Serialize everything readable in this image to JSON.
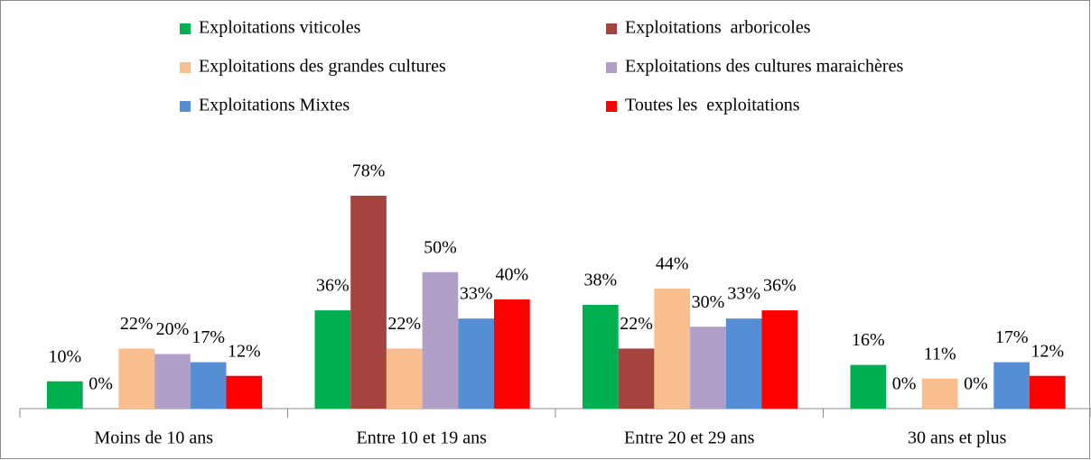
{
  "chart_data": {
    "type": "bar",
    "categories": [
      "Moins de 10 ans",
      "Entre 10 et 19 ans",
      "Entre 20 et 29 ans",
      "30 ans et plus"
    ],
    "series": [
      {
        "name": "Exploitations viticoles",
        "color": "#00b050",
        "values": [
          10,
          36,
          38,
          16
        ],
        "value_labels": [
          "10%",
          "36%",
          "38%",
          "16%"
        ]
      },
      {
        "name": "Exploitations  arboricoles",
        "color": "#a5443f",
        "values": [
          0,
          78,
          22,
          0
        ],
        "value_labels": [
          "0%",
          "78%",
          "22%",
          "0%"
        ]
      },
      {
        "name": "Exploitations des grandes cultures",
        "color": "#f9be8e",
        "values": [
          22,
          22,
          44,
          11
        ],
        "value_labels": [
          "22%",
          "22%",
          "44%",
          "11%"
        ]
      },
      {
        "name": "Exploitations des cultures maraichères",
        "color": "#b0a0c8",
        "values": [
          20,
          50,
          30,
          0
        ],
        "value_labels": [
          "20%",
          "50%",
          "30%",
          "0%"
        ]
      },
      {
        "name": "Exploitations Mixtes",
        "color": "#558ed5",
        "values": [
          17,
          33,
          33,
          17
        ],
        "value_labels": [
          "17%",
          "33%",
          "33%",
          "17%"
        ]
      },
      {
        "name": "Toutes les  exploitations",
        "color": "#ff0000",
        "values": [
          12,
          40,
          36,
          12
        ],
        "value_labels": [
          "12%",
          "40%",
          "36%",
          "12%"
        ]
      }
    ],
    "legend": "top"
  }
}
